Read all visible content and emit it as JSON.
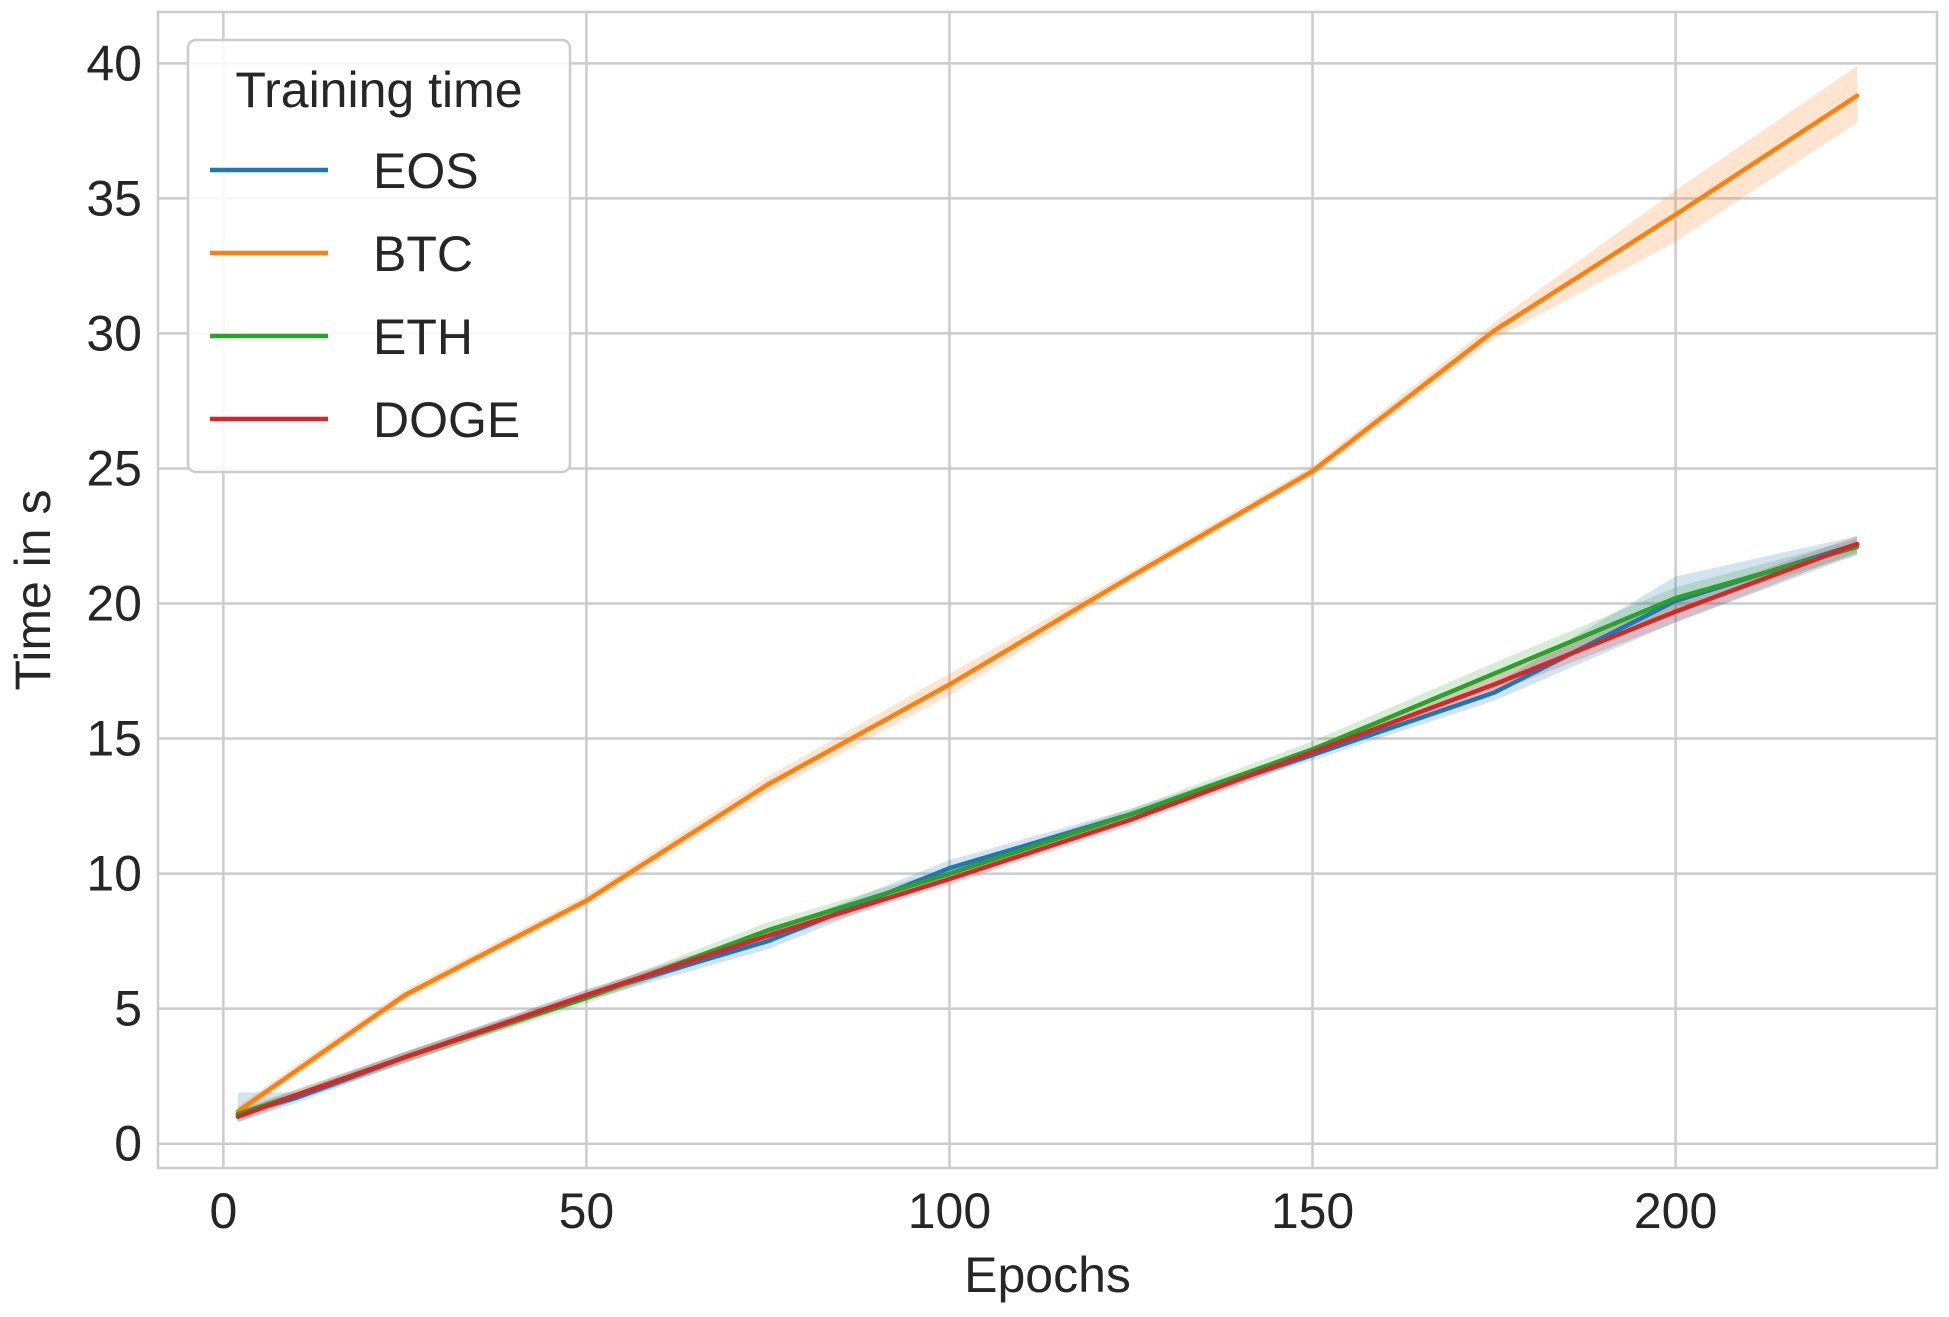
{
  "chart_data": {
    "type": "line",
    "xlabel": "Epochs",
    "ylabel": "Time in s",
    "xlim": [
      -9,
      236
    ],
    "ylim": [
      -0.9,
      41.9
    ],
    "xticks": [
      0,
      50,
      100,
      150,
      200
    ],
    "yticks": [
      0,
      5,
      10,
      15,
      20,
      25,
      30,
      35,
      40
    ],
    "grid": true,
    "legend": {
      "title": "Training time",
      "placement": "top-left"
    },
    "x": [
      2,
      10,
      25,
      50,
      75,
      100,
      125,
      150,
      175,
      200,
      225
    ],
    "series": [
      {
        "name": "EOS",
        "color": "#1f77b4",
        "values": [
          1.1,
          1.7,
          3.2,
          5.5,
          7.5,
          10.2,
          12.2,
          14.4,
          16.7,
          20.1,
          22.2
        ],
        "lower": [
          0.8,
          1.5,
          3.0,
          5.3,
          7.2,
          9.9,
          12.0,
          14.2,
          16.4,
          19.3,
          21.8
        ],
        "upper": [
          1.9,
          1.9,
          3.4,
          5.7,
          7.8,
          10.5,
          12.4,
          14.6,
          17.0,
          21.0,
          22.5
        ]
      },
      {
        "name": "BTC",
        "color": "#ff7f0e",
        "values": [
          1.2,
          2.7,
          5.5,
          9.0,
          13.3,
          17.0,
          21.0,
          24.9,
          30.1,
          34.4,
          38.8
        ],
        "lower": [
          1.0,
          2.5,
          5.3,
          8.8,
          13.0,
          16.6,
          20.8,
          24.7,
          29.8,
          33.4,
          37.8
        ],
        "upper": [
          1.4,
          2.9,
          5.7,
          9.2,
          13.6,
          17.4,
          21.2,
          25.1,
          30.4,
          35.3,
          39.9
        ]
      },
      {
        "name": "ETH",
        "color": "#2ca02c",
        "values": [
          1.1,
          1.8,
          3.2,
          5.4,
          7.9,
          10.0,
          12.2,
          14.6,
          17.4,
          20.2,
          22.1
        ],
        "lower": [
          0.9,
          1.6,
          3.0,
          5.2,
          7.6,
          9.8,
          12.0,
          14.3,
          17.0,
          19.8,
          21.8
        ],
        "upper": [
          1.3,
          2.0,
          3.4,
          5.6,
          8.2,
          10.2,
          12.4,
          14.9,
          17.8,
          20.6,
          22.4
        ]
      },
      {
        "name": "DOGE",
        "color": "#d62728",
        "values": [
          1.0,
          1.8,
          3.2,
          5.5,
          7.7,
          9.8,
          12.0,
          14.5,
          17.0,
          19.7,
          22.2
        ],
        "lower": [
          0.8,
          1.6,
          3.0,
          5.3,
          7.5,
          9.6,
          11.8,
          14.3,
          16.7,
          19.3,
          21.9
        ],
        "upper": [
          1.2,
          2.0,
          3.4,
          5.7,
          7.9,
          10.0,
          12.2,
          14.7,
          17.3,
          20.1,
          22.5
        ]
      }
    ]
  }
}
